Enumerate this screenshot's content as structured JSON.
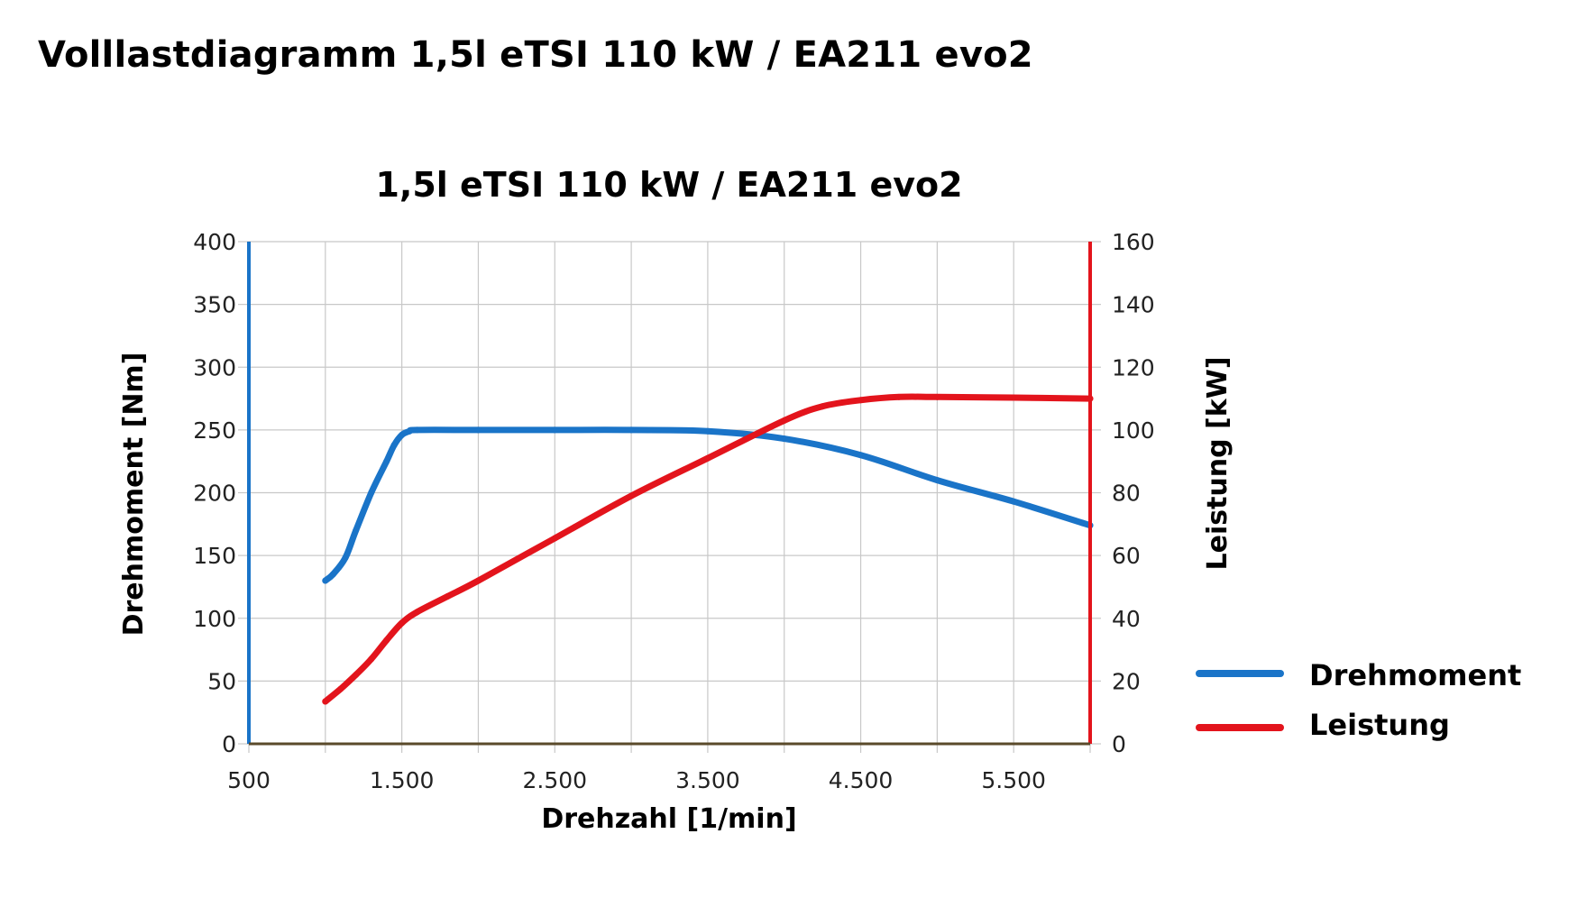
{
  "page": {
    "title": "Volllastdiagramm 1,5l eTSI 110 kW / EA211 evo2"
  },
  "chart_data": {
    "type": "line",
    "title": "1,5l eTSI 110 kW / EA211 evo2",
    "xlabel": "Drehzahl [1/min]",
    "ylabel_left": "Drehmoment [Nm]",
    "ylabel_right": "Leistung [kW]",
    "xlim": [
      500,
      6000
    ],
    "ylim_left": [
      0,
      400
    ],
    "ylim_right": [
      0,
      160
    ],
    "x_ticks": [
      500,
      1500,
      2500,
      3500,
      4500,
      5500
    ],
    "x_tick_labels": [
      "500",
      "1.500",
      "2.500",
      "3.500",
      "4.500",
      "5.500"
    ],
    "x_grid": [
      500,
      1000,
      1500,
      2000,
      2500,
      3000,
      3500,
      4000,
      4500,
      5000,
      5500,
      6000
    ],
    "y_left_ticks": [
      0,
      50,
      100,
      150,
      200,
      250,
      300,
      350,
      400
    ],
    "y_right_ticks": [
      0,
      20,
      40,
      60,
      80,
      100,
      120,
      140,
      160
    ],
    "grid": true,
    "legend_position": "right",
    "colors": {
      "torque": "#1a74c8",
      "power": "#e3141c",
      "left_axis": "#1a74c8",
      "right_axis": "#e3141c",
      "x_axis": "#5a4a2a",
      "grid": "#c8c8c8"
    },
    "series": [
      {
        "name": "Drehmoment",
        "axis": "left",
        "color": "#1a74c8",
        "x": [
          1000,
          1050,
          1130,
          1200,
          1300,
          1400,
          1450,
          1500,
          1550,
          1600,
          2000,
          2500,
          3000,
          3500,
          4000,
          4500,
          5000,
          5500,
          6000
        ],
        "y": [
          130,
          135,
          148,
          170,
          200,
          225,
          238,
          246,
          249,
          250,
          250,
          250,
          250,
          249,
          243,
          230,
          210,
          193,
          174
        ]
      },
      {
        "name": "Leistung",
        "axis": "right",
        "color": "#e3141c",
        "x": [
          1000,
          1100,
          1200,
          1300,
          1400,
          1500,
          1600,
          1800,
          2000,
          2500,
          3000,
          3500,
          4000,
          4250,
          4500,
          4750,
          5000,
          5500,
          6000
        ],
        "y": [
          13.5,
          17.5,
          22,
          27,
          33,
          38.5,
          42,
          47,
          52,
          65.5,
          79,
          91,
          103,
          107.5,
          109.5,
          110.5,
          110.5,
          110.3,
          110
        ]
      }
    ]
  }
}
